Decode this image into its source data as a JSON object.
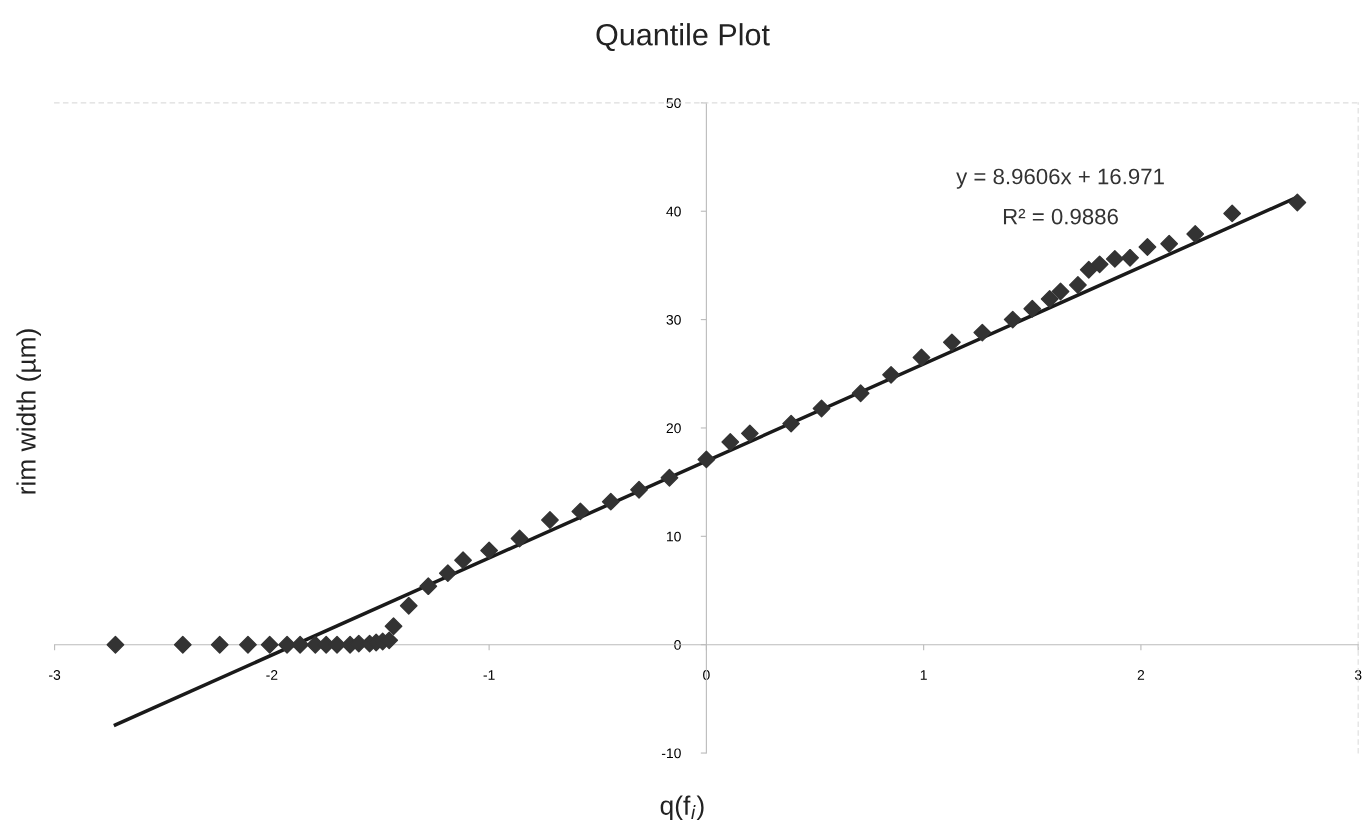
{
  "chart_data": {
    "type": "scatter",
    "title": "Quantile Plot",
    "xlabel": "q(f$_{i}$)",
    "ylabel": "rim width (µm)",
    "xlim": [
      -3,
      3
    ],
    "ylim": [
      -10,
      50
    ],
    "xticks": [
      -3,
      -2,
      -1,
      0,
      1,
      2,
      3
    ],
    "yticks": [
      -10,
      0,
      10,
      20,
      30,
      40,
      50
    ],
    "grid": false,
    "legend": false,
    "marker": "diamond",
    "annotations": [
      "y = 8.9606x + 16.971",
      "R² = 0.9886"
    ],
    "series": [
      {
        "color": "#333333",
        "x": [
          -2.72,
          -2.41,
          -2.24,
          -2.11,
          -2.01,
          -1.93,
          -1.87,
          -1.8,
          -1.75,
          -1.7,
          -1.64,
          -1.6,
          -1.55,
          -1.52,
          -1.49,
          -1.46,
          -1.44,
          -1.37,
          -1.28,
          -1.19,
          -1.12,
          -1.0,
          -0.86,
          -0.72,
          -0.58,
          -0.44,
          -0.31,
          -0.17,
          0.0,
          0.11,
          0.2,
          0.39,
          0.53,
          0.71,
          0.85,
          0.99,
          1.13,
          1.27,
          1.41,
          1.5,
          1.58,
          1.63,
          1.71,
          1.76,
          1.81,
          1.88,
          1.95,
          2.03,
          2.13,
          2.25,
          2.42,
          2.72
        ],
        "values": [
          0,
          0,
          0,
          0,
          0,
          0,
          0,
          0,
          0,
          0,
          0,
          0.1,
          0.1,
          0.2,
          0.3,
          0.4,
          1.7,
          3.6,
          5.4,
          6.6,
          7.8,
          8.7,
          9.8,
          11.5,
          12.3,
          13.2,
          14.3,
          15.4,
          17.1,
          18.7,
          19.5,
          20.4,
          21.8,
          23.2,
          24.9,
          26.5,
          27.9,
          28.8,
          30.0,
          31.0,
          31.9,
          32.6,
          33.2,
          34.6,
          35.1,
          35.6,
          35.7,
          36.7,
          37.0,
          37.9,
          39.8,
          40.8
        ]
      },
      {
        "type": "line",
        "marker": "none",
        "color": "#1a1a1a",
        "x": [
          -2.72,
          2.72
        ],
        "values": [
          -7.4,
          41.3
        ]
      }
    ]
  }
}
